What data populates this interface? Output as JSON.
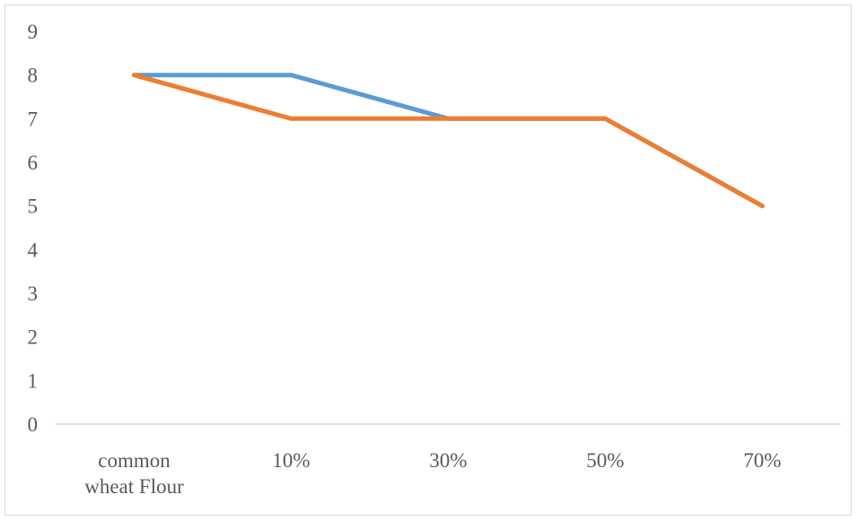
{
  "chart_data": {
    "type": "line",
    "categories": [
      "common\nwheat Flour",
      "10%",
      "30%",
      "50%",
      "70%"
    ],
    "series": [
      {
        "values": [
          8,
          8,
          7,
          7,
          5
        ],
        "color": "#5B9BD5"
      },
      {
        "values": [
          8,
          7,
          7,
          7,
          5
        ],
        "color": "#ED7D31"
      }
    ],
    "ylim": [
      0,
      9
    ],
    "yticks": [
      0,
      1,
      2,
      3,
      4,
      5,
      6,
      7,
      8,
      9
    ],
    "axis_color": "#d9d9d9",
    "grid": false,
    "legend": false
  }
}
